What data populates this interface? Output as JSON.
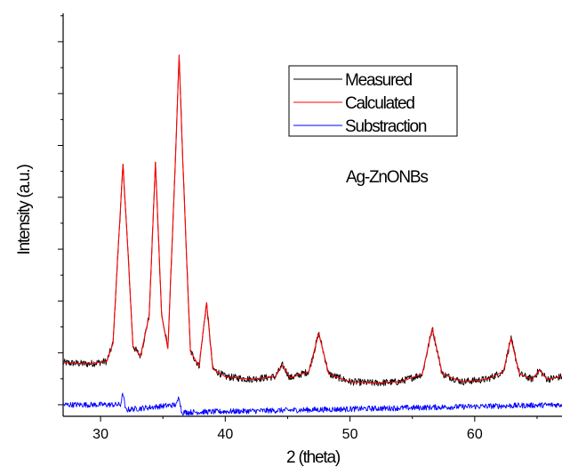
{
  "chart_data": {
    "type": "line",
    "title": "",
    "xlabel": "2 (theta)",
    "ylabel": "Intensity (a.u.)",
    "xlim": [
      27,
      67
    ],
    "ylim": [
      -0.3,
      14
    ],
    "x_ticks": [
      30,
      40,
      50,
      60
    ],
    "y_tick_labels": "none",
    "grid": false,
    "legend_position": "top-right",
    "annotation": "Ag-ZnONBs",
    "peaks_2theta": [
      31.8,
      34.4,
      36.3,
      38.5,
      44.6,
      47.5,
      56.6,
      62.9,
      65.2
    ],
    "series": [
      {
        "name": "Measured",
        "color": "#000000",
        "x": [
          27,
          29,
          30.5,
          31.0,
          31.4,
          31.8,
          32.2,
          32.6,
          33.2,
          33.9,
          34.4,
          34.9,
          35.4,
          36.0,
          36.3,
          36.6,
          37.2,
          37.9,
          38.5,
          39.0,
          40,
          42,
          44.0,
          44.6,
          45.2,
          46.7,
          47.5,
          48.3,
          50,
          52,
          54,
          55.8,
          56.6,
          57.4,
          59,
          61,
          62.3,
          62.9,
          63.6,
          64.6,
          65.2,
          65.8,
          67
        ],
        "y": [
          1.65,
          1.6,
          1.7,
          2.4,
          6.0,
          9.4,
          6.0,
          2.3,
          1.9,
          3.5,
          9.5,
          3.5,
          2.2,
          9.5,
          13.7,
          9.5,
          2.1,
          1.5,
          4.0,
          1.4,
          1.1,
          1.0,
          1.1,
          1.55,
          1.05,
          1.3,
          2.8,
          1.2,
          0.9,
          0.85,
          0.9,
          1.2,
          3.0,
          1.2,
          0.9,
          1.0,
          1.3,
          2.6,
          1.2,
          1.0,
          1.35,
          1.0,
          1.1
        ]
      },
      {
        "name": "Calculated",
        "color": "#ff0000",
        "x": [
          27,
          29,
          30.5,
          31.0,
          31.4,
          31.8,
          32.2,
          32.6,
          33.2,
          33.9,
          34.4,
          34.9,
          35.4,
          36.0,
          36.3,
          36.6,
          37.2,
          37.9,
          38.5,
          39.0,
          40,
          42,
          44.0,
          44.6,
          45.2,
          46.7,
          47.5,
          48.3,
          50,
          52,
          54,
          55.8,
          56.6,
          57.4,
          59,
          61,
          62.3,
          62.9,
          63.6,
          64.6,
          65.2,
          65.8,
          67
        ],
        "y": [
          1.65,
          1.6,
          1.7,
          2.4,
          6.0,
          9.4,
          6.0,
          2.3,
          1.9,
          3.5,
          9.5,
          3.5,
          2.2,
          9.5,
          13.7,
          9.5,
          2.1,
          1.5,
          4.0,
          1.4,
          1.1,
          1.0,
          1.1,
          1.55,
          1.05,
          1.3,
          2.8,
          1.2,
          0.9,
          0.85,
          0.9,
          1.2,
          3.0,
          1.2,
          0.9,
          1.0,
          1.3,
          2.6,
          1.2,
          1.0,
          1.35,
          1.0,
          1.1
        ]
      },
      {
        "name": "Substraction",
        "color": "#0000ff",
        "x": [
          27,
          31.6,
          31.8,
          32.0,
          36.1,
          36.3,
          36.5,
          67
        ],
        "y": [
          0,
          0,
          0.45,
          -0.2,
          0,
          0.35,
          -0.3,
          0
        ]
      }
    ]
  }
}
